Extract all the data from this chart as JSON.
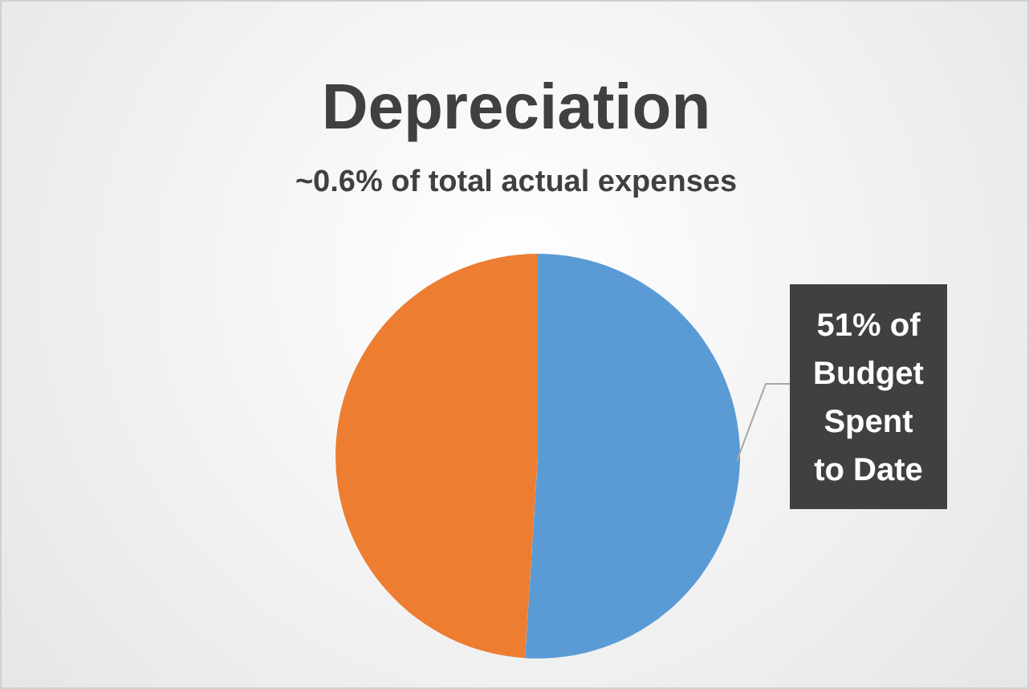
{
  "chart_data": {
    "type": "pie",
    "title": "Depreciation",
    "subtitle": "~0.6% of total actual expenses",
    "categories": [
      null,
      null
    ],
    "values": [
      51,
      49
    ],
    "colors": [
      "#5b9bd5",
      "#ed7d31"
    ],
    "value_labels": [
      "51% of Budget Spent to Date",
      null
    ]
  }
}
